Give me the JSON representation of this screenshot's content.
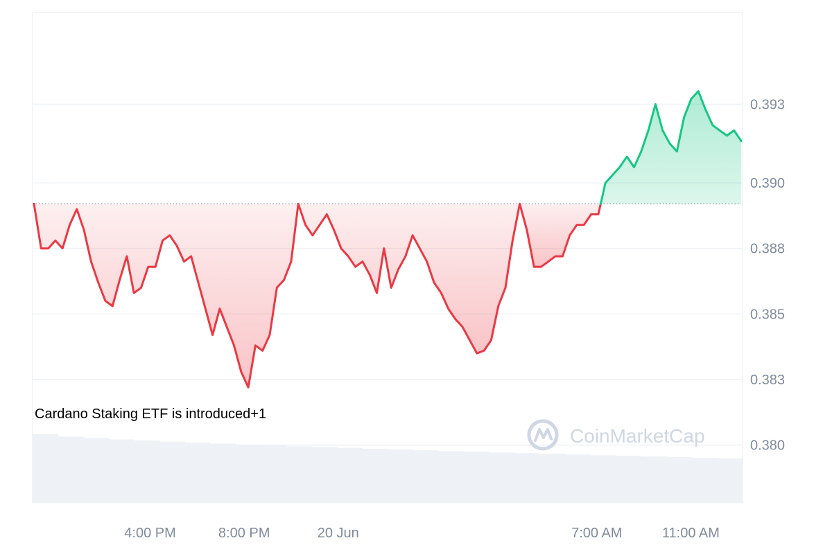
{
  "chart_data": {
    "type": "area",
    "baseline": 0.3892,
    "ylim": [
      0.3778,
      0.3965
    ],
    "y_ticks": [
      "0.393",
      "0.390",
      "0.388",
      "0.385",
      "0.383",
      "0.380"
    ],
    "y_tick_values": [
      0.393,
      0.39,
      0.3875,
      0.385,
      0.3825,
      0.38
    ],
    "x_ticks": [
      "4:00 PM",
      "8:00 PM",
      "20 Jun",
      "7:00 AM",
      "11:00 AM"
    ],
    "x_tick_hours": [
      4,
      8,
      12,
      23,
      27
    ],
    "x_range_hours": [
      -1,
      29.2
    ],
    "series": [
      {
        "values": [
          0.3892,
          0.3875,
          0.3875,
          0.3878,
          0.3875,
          0.3884,
          0.389,
          0.3882,
          0.387,
          0.3862,
          0.3855,
          0.3853,
          0.3863,
          0.3872,
          0.3858,
          0.386,
          0.3868,
          0.3868,
          0.3878,
          0.388,
          0.3876,
          0.387,
          0.3872,
          0.3862,
          0.3852,
          0.3842,
          0.3852,
          0.3845,
          0.3838,
          0.3828,
          0.3822,
          0.3838,
          0.3836,
          0.3842,
          0.386,
          0.3863,
          0.387,
          0.3892,
          0.3884,
          0.388,
          0.3884,
          0.3888,
          0.3882,
          0.3875,
          0.3872,
          0.3868,
          0.387,
          0.3865,
          0.3858,
          0.3875,
          0.386,
          0.3867,
          0.3872,
          0.388,
          0.3875,
          0.387,
          0.3862,
          0.3858,
          0.3852,
          0.3848,
          0.3845,
          0.384,
          0.3835,
          0.3836,
          0.384,
          0.3853,
          0.386,
          0.3878,
          0.3892,
          0.3882,
          0.3868,
          0.3868,
          0.387,
          0.3872,
          0.3872,
          0.388,
          0.3884,
          0.3884,
          0.3888,
          0.3888,
          0.39,
          0.3903,
          0.3906,
          0.391,
          0.3906,
          0.3912,
          0.392,
          0.393,
          0.392,
          0.3915,
          0.3912,
          0.3925,
          0.3932,
          0.3935,
          0.3928,
          0.3922,
          0.392,
          0.3918,
          0.392,
          0.3916
        ]
      }
    ],
    "colors": {
      "up": "#16c784",
      "down": "#ea3943",
      "up_fill": "#16c784",
      "down_fill": "#ea3943",
      "grid": "#eff2f5",
      "volume": "#eef1f5",
      "baseline": "#808a9d"
    },
    "volume_bars": 28,
    "annotation": "Cardano Staking ETF is introduced+1",
    "watermark": "CoinMarketCap",
    "watermark_icon": "coinmarketcap-logo-icon",
    "grid": true
  }
}
